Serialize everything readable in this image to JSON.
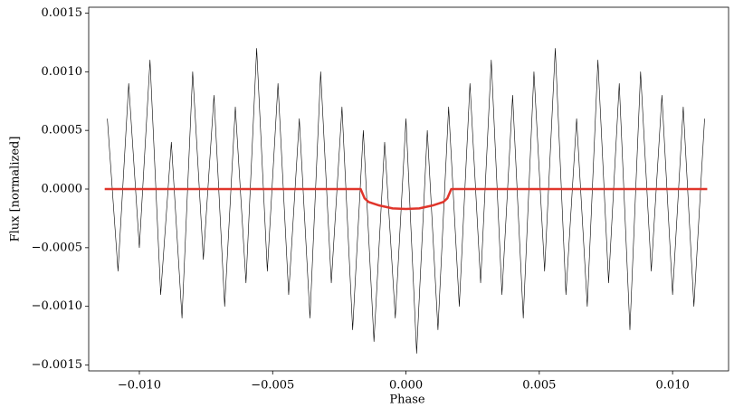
{
  "chart_data": {
    "type": "line",
    "xlabel": "Phase",
    "ylabel": "Flux [normalized]",
    "xlim": [
      -0.0119,
      0.0121
    ],
    "ylim": [
      -0.00155,
      0.00155
    ],
    "xticks": [
      {
        "value": -0.01,
        "label": "−0.010"
      },
      {
        "value": -0.005,
        "label": "−0.005"
      },
      {
        "value": 0,
        "label": "0.000"
      },
      {
        "value": 0.005,
        "label": "0.005"
      },
      {
        "value": 0.01,
        "label": "0.010"
      }
    ],
    "yticks": [
      {
        "value": -0.0015,
        "label": "−0.0015"
      },
      {
        "value": -0.001,
        "label": "−0.0010"
      },
      {
        "value": -0.0005,
        "label": "−0.0005"
      },
      {
        "value": 0,
        "label": "0.0000"
      },
      {
        "value": 0.0005,
        "label": "0.0005"
      },
      {
        "value": 0.001,
        "label": "0.0010"
      },
      {
        "value": 0.0015,
        "label": "0.0015"
      }
    ],
    "series": [
      {
        "color": "#000000",
        "width": 0.6,
        "x": [
          -0.0112,
          -0.0108,
          -0.0104,
          -0.01,
          -0.0096,
          -0.0092,
          -0.0088,
          -0.0084,
          -0.008,
          -0.0076,
          -0.0072,
          -0.0068,
          -0.0064,
          -0.006,
          -0.0056,
          -0.0052,
          -0.0048,
          -0.0044,
          -0.004,
          -0.0036,
          -0.0032,
          -0.0028,
          -0.0024,
          -0.002,
          -0.0016,
          -0.0012,
          -0.0008,
          -0.0004,
          0,
          0.0004,
          0.0008,
          0.0012,
          0.0016,
          0.002,
          0.0024,
          0.0028,
          0.0032,
          0.0036,
          0.004,
          0.0044,
          0.0048,
          0.0052,
          0.0056,
          0.006,
          0.0064,
          0.0068,
          0.0072,
          0.0076,
          0.008,
          0.0084,
          0.0088,
          0.0092,
          0.0096,
          0.01,
          0.0104,
          0.0108,
          0.0112
        ],
        "values": [
          0.0006,
          -0.0007,
          0.0009,
          -0.0005,
          0.0011,
          -0.0009,
          0.0004,
          -0.0011,
          0.001,
          -0.0006,
          0.0008,
          -0.001,
          0.0007,
          -0.0008,
          0.0012,
          -0.0007,
          0.0009,
          -0.0009,
          0.0006,
          -0.0011,
          0.001,
          -0.0008,
          0.0007,
          -0.0012,
          0.0005,
          -0.0013,
          0.0004,
          -0.0011,
          0.0006,
          -0.0014,
          0.0005,
          -0.0012,
          0.0007,
          -0.001,
          0.0009,
          -0.0008,
          0.0011,
          -0.0009,
          0.0008,
          -0.0011,
          0.001,
          -0.0007,
          0.0012,
          -0.0009,
          0.0006,
          -0.001,
          0.0011,
          -0.0008,
          0.0009,
          -0.0012,
          0.001,
          -0.0007,
          0.0008,
          -0.0009,
          0.0007,
          -0.001,
          0.0006
        ]
      },
      {
        "color": "#e0352b",
        "width": 2.5,
        "x": [
          -0.0113,
          -0.0017,
          -0.00155,
          -0.0014,
          -0.001,
          -0.0005,
          0,
          0.0005,
          0.001,
          0.0014,
          0.00155,
          0.0017,
          0.0113
        ],
        "values": [
          0,
          0,
          -8e-05,
          -0.00011,
          -0.00014,
          -0.000165,
          -0.00017,
          -0.000165,
          -0.00014,
          -0.00011,
          -8e-05,
          0,
          0
        ]
      }
    ]
  }
}
